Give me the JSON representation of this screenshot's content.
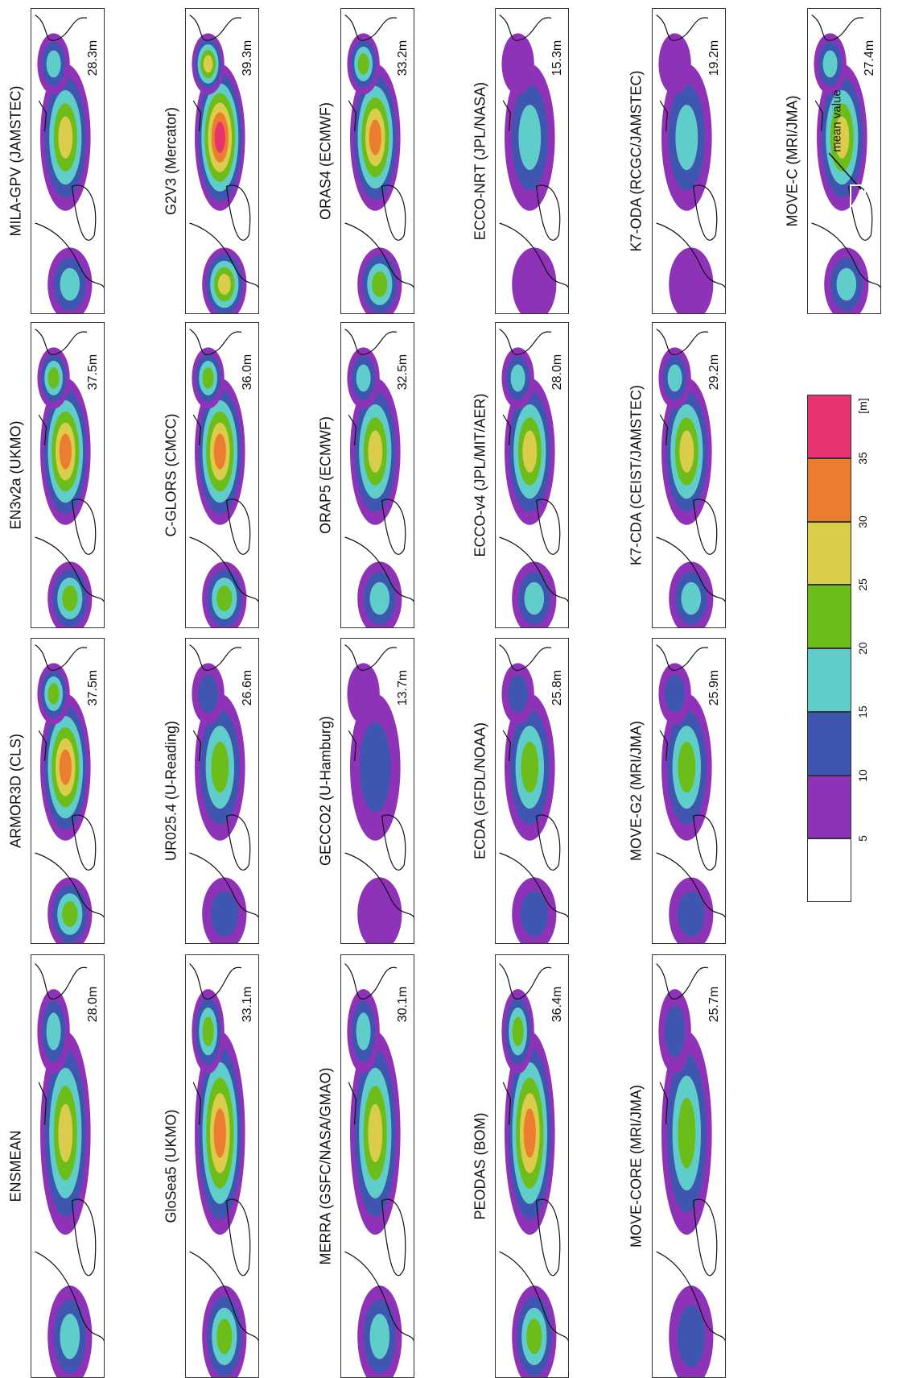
{
  "figure": {
    "unit_label": "[m]",
    "colorbar": {
      "ticks": [
        "5",
        "10",
        "15",
        "20",
        "25",
        "30",
        "35"
      ],
      "colors": [
        "#ffffff",
        "#8e33b8",
        "#3e56b0",
        "#5fcdc9",
        "#6cbd1a",
        "#dccc4c",
        "#ea7e2e",
        "#e8336f"
      ]
    },
    "annotation": {
      "text": "mean value"
    },
    "map_colors": {
      "land": "#ffffff",
      "coast": "#111111"
    }
  },
  "panels": [
    {
      "title": "MILA-GPV (JAMSTEC)",
      "mean": "28.3m"
    },
    {
      "title": "EN3v2a (UKMO)",
      "mean": "37.5m"
    },
    {
      "title": "ARMOR3D (CLS)",
      "mean": "37.5m"
    },
    {
      "title": "ENSMEAN",
      "mean": "28.0m"
    },
    {
      "title": "G2V3 (Mercator)",
      "mean": "39.3m"
    },
    {
      "title": "C-GLORS (CMCC)",
      "mean": "36.0m"
    },
    {
      "title": "UR025.4 (U-Reading)",
      "mean": "26.6m"
    },
    {
      "title": "GloSea5 (UKMO)",
      "mean": "33.1m"
    },
    {
      "title": "ORAS4 (ECMWF)",
      "mean": "33.2m"
    },
    {
      "title": "ORAP5 (ECMWF)",
      "mean": "32.5m"
    },
    {
      "title": "GECCO2 (U-Hamburg)",
      "mean": "13.7m"
    },
    {
      "title": "MERRA (GSFC/NASA/GMAO)",
      "mean": "30.1m"
    },
    {
      "title": "ECCO-NRT (JPL/NASA)",
      "mean": "15.3m"
    },
    {
      "title": "ECCO-v4 (JPL/MIT/AER)",
      "mean": "28.0m"
    },
    {
      "title": "ECDA (GFDL/NOAA)",
      "mean": "25.8m"
    },
    {
      "title": "PEODAS (BOM)",
      "mean": "36.4m"
    },
    {
      "title": "K7-ODA (RCGC/JAMSTEC)",
      "mean": "19.2m"
    },
    {
      "title": "K7-CDA (CEIST/JAMSTEC)",
      "mean": "29.2m"
    },
    {
      "title": "MOVE-G2 (MRI/JMA)",
      "mean": "25.9m"
    },
    {
      "title": "MOVE-CORE (MRI/JMA)",
      "mean": "25.7m"
    },
    {
      "title": "MOVE-C (MRI/JMA)",
      "mean": "27.4m"
    },
    {
      "title": "",
      "mean": "",
      "note": true
    }
  ]
}
